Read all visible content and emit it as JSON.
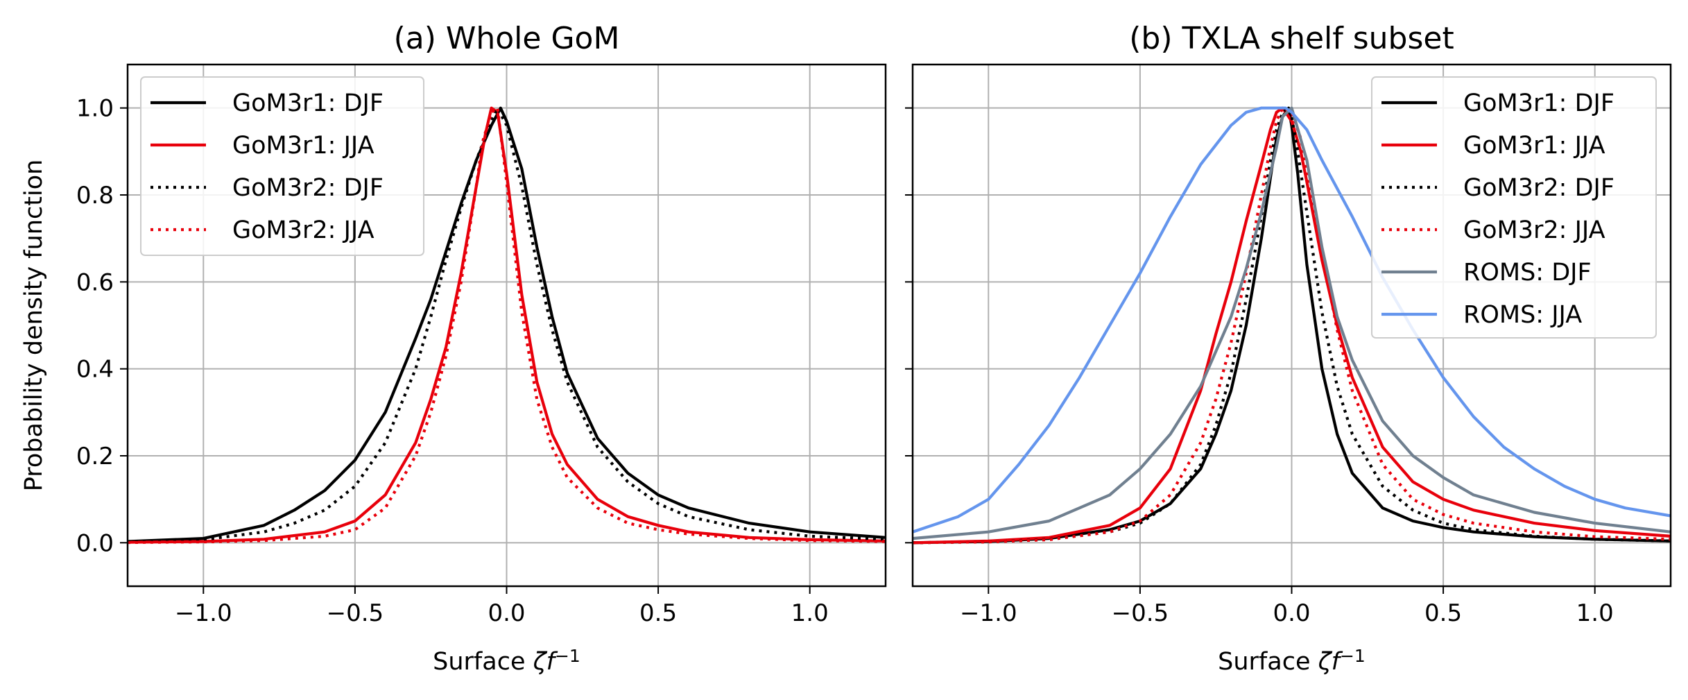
{
  "figure": {
    "ylabel": "Probability density function"
  },
  "chart_data": [
    {
      "type": "line",
      "title": "(a) Whole GoM",
      "xlabel_main": "Surface ",
      "xlabel_symbol": "ζf",
      "xlabel_sup": "−1",
      "ylabel": "Probability density function",
      "xlim": [
        -1.25,
        1.25
      ],
      "ylim": [
        -0.1,
        1.1
      ],
      "xticks": [
        -1.0,
        -0.5,
        0.0,
        0.5,
        1.0
      ],
      "xtick_labels": [
        "−1.0",
        "−0.5",
        "0.0",
        "0.5",
        "1.0"
      ],
      "yticks": [
        0.0,
        0.2,
        0.4,
        0.6,
        0.8,
        1.0
      ],
      "ytick_labels": [
        "0.0",
        "0.2",
        "0.4",
        "0.6",
        "0.8",
        "1.0"
      ],
      "grid": true,
      "legend_position": "top-left",
      "series": [
        {
          "name": "GoM3r1: DJF",
          "color": "#000000",
          "dash": "solid",
          "x": [
            -1.25,
            -1.0,
            -0.8,
            -0.7,
            -0.6,
            -0.5,
            -0.4,
            -0.3,
            -0.25,
            -0.2,
            -0.15,
            -0.1,
            -0.05,
            -0.02,
            0.0,
            0.05,
            0.1,
            0.15,
            0.2,
            0.3,
            0.4,
            0.5,
            0.6,
            0.8,
            1.0,
            1.25
          ],
          "y": [
            0.003,
            0.01,
            0.04,
            0.075,
            0.12,
            0.19,
            0.3,
            0.47,
            0.56,
            0.67,
            0.78,
            0.88,
            0.96,
            1.0,
            0.97,
            0.86,
            0.68,
            0.52,
            0.39,
            0.24,
            0.16,
            0.11,
            0.08,
            0.045,
            0.025,
            0.012
          ]
        },
        {
          "name": "GoM3r1: JJA",
          "color": "#e8000b",
          "dash": "solid",
          "x": [
            -1.25,
            -1.0,
            -0.8,
            -0.6,
            -0.5,
            -0.4,
            -0.3,
            -0.25,
            -0.2,
            -0.15,
            -0.1,
            -0.07,
            -0.05,
            -0.03,
            0.0,
            0.05,
            0.1,
            0.15,
            0.2,
            0.3,
            0.4,
            0.5,
            0.6,
            0.8,
            1.0,
            1.25
          ],
          "y": [
            0.001,
            0.003,
            0.008,
            0.025,
            0.05,
            0.11,
            0.23,
            0.33,
            0.45,
            0.62,
            0.82,
            0.94,
            1.0,
            0.99,
            0.85,
            0.57,
            0.37,
            0.25,
            0.18,
            0.1,
            0.06,
            0.04,
            0.025,
            0.012,
            0.007,
            0.004
          ]
        },
        {
          "name": "GoM3r2: DJF",
          "color": "#000000",
          "dash": "dotted",
          "x": [
            -1.25,
            -1.0,
            -0.8,
            -0.7,
            -0.6,
            -0.5,
            -0.4,
            -0.3,
            -0.25,
            -0.2,
            -0.15,
            -0.1,
            -0.05,
            -0.03,
            0.0,
            0.05,
            0.1,
            0.15,
            0.2,
            0.3,
            0.4,
            0.5,
            0.6,
            0.8,
            1.0,
            1.25
          ],
          "y": [
            0.002,
            0.007,
            0.025,
            0.045,
            0.075,
            0.13,
            0.23,
            0.4,
            0.52,
            0.65,
            0.77,
            0.88,
            0.97,
            1.0,
            0.96,
            0.82,
            0.64,
            0.49,
            0.37,
            0.22,
            0.14,
            0.09,
            0.06,
            0.03,
            0.015,
            0.008
          ]
        },
        {
          "name": "GoM3r2: JJA",
          "color": "#e8000b",
          "dash": "dotted",
          "x": [
            -1.25,
            -1.0,
            -0.8,
            -0.6,
            -0.5,
            -0.4,
            -0.3,
            -0.25,
            -0.2,
            -0.15,
            -0.1,
            -0.08,
            -0.05,
            -0.03,
            0.0,
            0.05,
            0.1,
            0.15,
            0.2,
            0.3,
            0.4,
            0.5,
            0.6,
            0.8,
            1.0,
            1.25
          ],
          "y": [
            0.0005,
            0.002,
            0.005,
            0.015,
            0.03,
            0.08,
            0.2,
            0.3,
            0.43,
            0.6,
            0.82,
            0.92,
            0.99,
            1.0,
            0.83,
            0.53,
            0.33,
            0.22,
            0.15,
            0.08,
            0.045,
            0.03,
            0.02,
            0.01,
            0.005,
            0.003
          ]
        }
      ]
    },
    {
      "type": "line",
      "title": "(b) TXLA shelf subset",
      "xlabel_main": "Surface ",
      "xlabel_symbol": "ζf",
      "xlabel_sup": "−1",
      "xlim": [
        -1.25,
        1.25
      ],
      "ylim": [
        -0.1,
        1.1
      ],
      "xticks": [
        -1.0,
        -0.5,
        0.0,
        0.5,
        1.0
      ],
      "xtick_labels": [
        "−1.0",
        "−0.5",
        "0.0",
        "0.5",
        "1.0"
      ],
      "yticks": [
        0.0,
        0.2,
        0.4,
        0.6,
        0.8,
        1.0
      ],
      "grid": true,
      "legend_position": "top-right",
      "series": [
        {
          "name": "GoM3r1: DJF",
          "color": "#000000",
          "dash": "solid",
          "x": [
            -1.25,
            -1.0,
            -0.8,
            -0.6,
            -0.5,
            -0.4,
            -0.3,
            -0.25,
            -0.2,
            -0.15,
            -0.1,
            -0.07,
            -0.05,
            -0.03,
            -0.01,
            0.0,
            0.02,
            0.05,
            0.1,
            0.15,
            0.2,
            0.3,
            0.4,
            0.5,
            0.6,
            0.8,
            1.0,
            1.25
          ],
          "y": [
            0.0,
            0.003,
            0.01,
            0.03,
            0.05,
            0.09,
            0.17,
            0.25,
            0.35,
            0.5,
            0.7,
            0.84,
            0.93,
            0.98,
            1.0,
            0.96,
            0.85,
            0.64,
            0.4,
            0.25,
            0.16,
            0.08,
            0.05,
            0.035,
            0.025,
            0.014,
            0.008,
            0.004
          ]
        },
        {
          "name": "GoM3r1: JJA",
          "color": "#e8000b",
          "dash": "solid",
          "x": [
            -1.25,
            -1.0,
            -0.8,
            -0.6,
            -0.5,
            -0.4,
            -0.3,
            -0.25,
            -0.2,
            -0.15,
            -0.1,
            -0.07,
            -0.05,
            -0.03,
            0.0,
            0.03,
            0.05,
            0.1,
            0.15,
            0.2,
            0.3,
            0.4,
            0.5,
            0.6,
            0.8,
            1.0,
            1.25
          ],
          "y": [
            0.0,
            0.004,
            0.012,
            0.04,
            0.08,
            0.17,
            0.35,
            0.48,
            0.6,
            0.74,
            0.87,
            0.95,
            0.99,
            1.0,
            0.97,
            0.9,
            0.83,
            0.65,
            0.5,
            0.38,
            0.22,
            0.14,
            0.1,
            0.075,
            0.045,
            0.028,
            0.015
          ]
        },
        {
          "name": "GoM3r2: DJF",
          "color": "#000000",
          "dash": "dotted",
          "x": [
            -1.25,
            -1.0,
            -0.8,
            -0.6,
            -0.5,
            -0.4,
            -0.3,
            -0.25,
            -0.2,
            -0.15,
            -0.1,
            -0.07,
            -0.05,
            -0.03,
            -0.01,
            0.0,
            0.02,
            0.05,
            0.1,
            0.15,
            0.2,
            0.3,
            0.4,
            0.5,
            0.6,
            0.8,
            1.0,
            1.25
          ],
          "y": [
            0.0,
            0.002,
            0.008,
            0.025,
            0.045,
            0.09,
            0.18,
            0.27,
            0.39,
            0.56,
            0.75,
            0.88,
            0.95,
            0.99,
            1.0,
            0.98,
            0.9,
            0.76,
            0.53,
            0.36,
            0.25,
            0.13,
            0.075,
            0.045,
            0.03,
            0.015,
            0.008,
            0.004
          ]
        },
        {
          "name": "GoM3r2: JJA",
          "color": "#e8000b",
          "dash": "dotted",
          "x": [
            -1.25,
            -1.0,
            -0.8,
            -0.6,
            -0.5,
            -0.4,
            -0.3,
            -0.25,
            -0.2,
            -0.15,
            -0.1,
            -0.07,
            -0.05,
            -0.03,
            0.0,
            0.03,
            0.05,
            0.1,
            0.15,
            0.2,
            0.3,
            0.4,
            0.5,
            0.6,
            0.8,
            1.0,
            1.25
          ],
          "y": [
            0.0,
            0.002,
            0.007,
            0.025,
            0.05,
            0.11,
            0.23,
            0.33,
            0.46,
            0.62,
            0.8,
            0.91,
            0.97,
            1.0,
            0.99,
            0.93,
            0.86,
            0.67,
            0.49,
            0.35,
            0.18,
            0.1,
            0.065,
            0.045,
            0.025,
            0.014,
            0.008
          ]
        },
        {
          "name": "ROMS: DJF",
          "color": "#708090",
          "dash": "solid",
          "x": [
            -1.25,
            -1.0,
            -0.8,
            -0.6,
            -0.5,
            -0.4,
            -0.3,
            -0.2,
            -0.15,
            -0.1,
            -0.05,
            -0.03,
            0.0,
            0.05,
            0.1,
            0.15,
            0.2,
            0.3,
            0.4,
            0.5,
            0.6,
            0.8,
            1.0,
            1.25
          ],
          "y": [
            0.01,
            0.025,
            0.05,
            0.11,
            0.17,
            0.25,
            0.36,
            0.52,
            0.63,
            0.76,
            0.91,
            0.98,
            1.0,
            0.88,
            0.68,
            0.52,
            0.42,
            0.28,
            0.2,
            0.15,
            0.11,
            0.07,
            0.045,
            0.025
          ]
        },
        {
          "name": "ROMS: JJA",
          "color": "#6495ed",
          "dash": "solid",
          "x": [
            -1.25,
            -1.1,
            -1.0,
            -0.9,
            -0.8,
            -0.7,
            -0.6,
            -0.5,
            -0.4,
            -0.3,
            -0.2,
            -0.15,
            -0.1,
            -0.05,
            -0.02,
            0.0,
            0.05,
            0.1,
            0.2,
            0.3,
            0.4,
            0.5,
            0.6,
            0.7,
            0.8,
            0.9,
            1.0,
            1.1,
            1.25
          ],
          "y": [
            0.025,
            0.06,
            0.1,
            0.18,
            0.27,
            0.38,
            0.5,
            0.62,
            0.75,
            0.87,
            0.96,
            0.99,
            1.0,
            1.0,
            1.0,
            0.99,
            0.95,
            0.88,
            0.75,
            0.61,
            0.49,
            0.38,
            0.29,
            0.22,
            0.17,
            0.13,
            0.1,
            0.08,
            0.062
          ]
        }
      ]
    }
  ]
}
